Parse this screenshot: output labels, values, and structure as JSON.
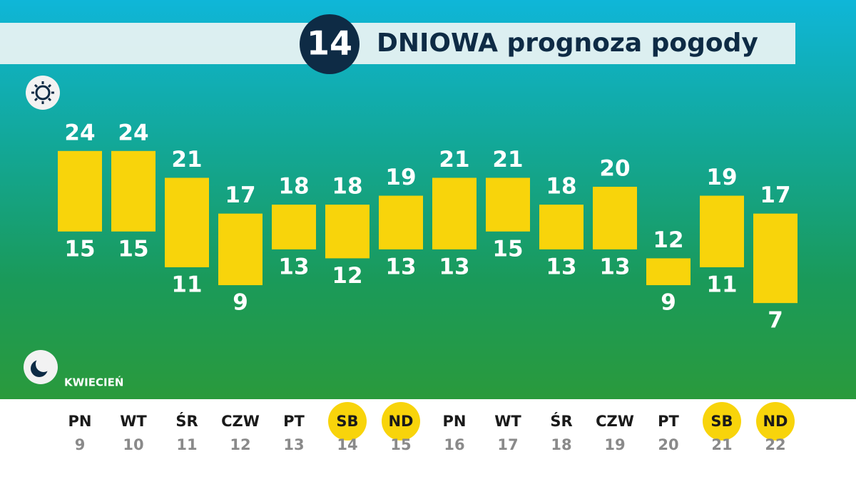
{
  "chart_data": {
    "type": "range-bar",
    "title_number": "14",
    "title": "DNIOWA prognoza pogody",
    "month": "KWIECIEŃ",
    "color": "#f8d40b",
    "highlight_color": "#f8d40b",
    "days": [
      {
        "name": "PN",
        "date": 9,
        "highlight": false
      },
      {
        "name": "WT",
        "date": 10,
        "highlight": false
      },
      {
        "name": "ŚR",
        "date": 11,
        "highlight": false
      },
      {
        "name": "CZW",
        "date": 12,
        "highlight": false
      },
      {
        "name": "PT",
        "date": 13,
        "highlight": false
      },
      {
        "name": "SB",
        "date": 14,
        "highlight": true
      },
      {
        "name": "ND",
        "date": 15,
        "highlight": true
      },
      {
        "name": "PN",
        "date": 16,
        "highlight": false
      },
      {
        "name": "WT",
        "date": 17,
        "highlight": false
      },
      {
        "name": "ŚR",
        "date": 18,
        "highlight": false
      },
      {
        "name": "CZW",
        "date": 19,
        "highlight": false
      },
      {
        "name": "PT",
        "date": 20,
        "highlight": false
      },
      {
        "name": "SB",
        "date": 21,
        "highlight": true
      },
      {
        "name": "ND",
        "date": 22,
        "highlight": true
      }
    ],
    "high": [
      24,
      24,
      21,
      17,
      18,
      18,
      19,
      21,
      21,
      18,
      20,
      12,
      19,
      17
    ],
    "low": [
      15,
      15,
      11,
      9,
      13,
      12,
      13,
      13,
      15,
      13,
      13,
      9,
      11,
      7
    ]
  }
}
